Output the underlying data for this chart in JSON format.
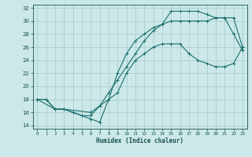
{
  "xlabel": "Humidex (Indice chaleur)",
  "ylabel": "",
  "bg_color": "#cce8e8",
  "grid_color": "#aacfcf",
  "line_color": "#1a6e6e",
  "xlim": [
    -0.5,
    23.5
  ],
  "ylim": [
    13.5,
    32.5
  ],
  "xticks": [
    0,
    1,
    2,
    3,
    4,
    5,
    6,
    7,
    8,
    9,
    10,
    11,
    12,
    13,
    14,
    15,
    16,
    17,
    18,
    19,
    20,
    21,
    22,
    23
  ],
  "yticks": [
    14,
    16,
    18,
    20,
    22,
    24,
    26,
    28,
    30,
    32
  ],
  "line1_x": [
    0,
    1,
    2,
    3,
    4,
    5,
    6,
    7,
    8,
    9,
    10,
    11,
    12,
    13,
    14,
    15,
    16,
    17,
    18,
    19,
    20,
    21,
    22,
    23
  ],
  "line1_y": [
    18,
    18,
    16.5,
    16.5,
    16,
    15.5,
    15,
    14.5,
    18,
    22,
    25,
    27,
    28,
    29,
    29.5,
    30,
    30,
    30,
    30,
    30,
    30.5,
    30.5,
    28,
    25.5
  ],
  "line2_x": [
    0,
    1,
    2,
    3,
    4,
    5,
    6,
    7,
    8,
    9,
    10,
    11,
    12,
    13,
    14,
    15,
    16,
    17,
    18,
    19,
    20,
    21,
    22,
    23
  ],
  "line2_y": [
    18,
    18,
    16.5,
    16.5,
    16,
    15.5,
    15.5,
    17,
    19,
    21,
    23,
    25,
    27,
    28.5,
    29.5,
    31.5,
    31.5,
    31.5,
    31.5,
    31,
    30.5,
    30.5,
    30.5,
    26
  ],
  "line3_x": [
    0,
    2,
    3,
    6,
    7,
    9,
    10,
    11,
    12,
    13,
    14,
    15,
    16,
    17,
    18,
    19,
    20,
    21,
    22,
    23
  ],
  "line3_y": [
    18,
    16.5,
    16.5,
    16,
    17,
    19,
    22,
    24,
    25,
    26,
    26.5,
    26.5,
    26.5,
    25,
    24,
    23.5,
    23,
    23,
    23.5,
    26
  ]
}
